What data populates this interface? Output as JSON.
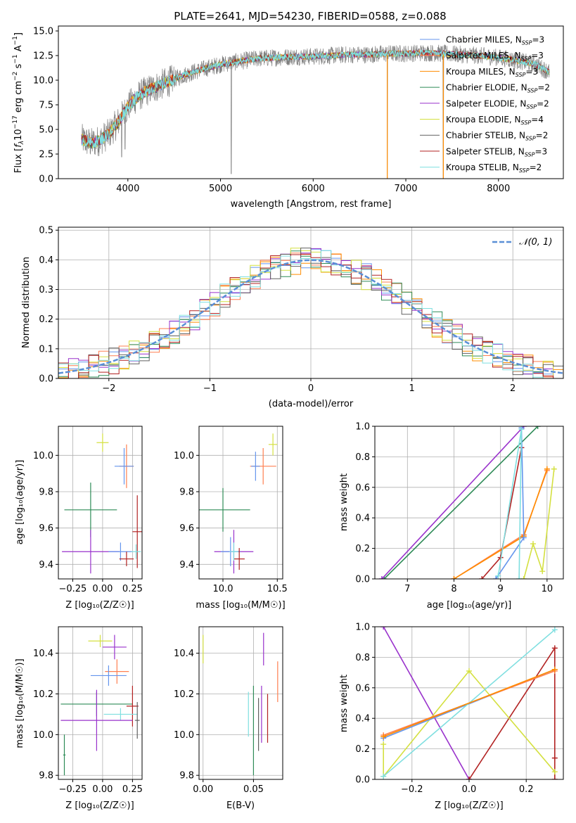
{
  "figure_title": "PLATE=2641, MJD=54230, FIBERID=0588, z=0.088",
  "colors": {
    "Chabrier MILES": "#6495ed",
    "Salpeter MILES": "#ff7f50",
    "Kroupa MILES": "#ff8c00",
    "Chabrier ELODIE": "#2e8b57",
    "Salpeter ELODIE": "#9932cc",
    "Kroupa ELODIE": "#d4e040",
    "Chabrier STELIB": "#606060",
    "Salpeter STELIB": "#b22222",
    "Kroupa STELIB": "#7fdfe0",
    "normal": "#5a8fd6",
    "data": "#808080"
  },
  "chart_data": [
    {
      "id": "spectrum",
      "type": "line",
      "title": "PLATE=2641, MJD=54230, FIBERID=0588, z=0.088",
      "xlabel": "wavelength [Angstrom, rest frame]",
      "ylabel_parts": {
        "a": "Flux [",
        "b": "f",
        "c": "λ",
        "d": "10",
        "e": "−17",
        "f": " erg cm",
        "g": "−2",
        "h": " s",
        "i": "−1",
        "j": " A",
        "k": "−1",
        "l": "]"
      },
      "xlim": [
        3250,
        8700
      ],
      "ylim": [
        0,
        15.5
      ],
      "xticks": [
        4000,
        5000,
        6000,
        7000,
        8000
      ],
      "yticks": [
        0.0,
        2.5,
        5.0,
        7.5,
        10.0,
        12.5,
        15.0
      ],
      "ytick_labels": [
        "0.0",
        "2.5",
        "5.0",
        "7.5",
        "10.0",
        "12.5",
        "15.0"
      ],
      "legend_location": "right",
      "legend": [
        {
          "name": "Chabrier MILES",
          "n": "3"
        },
        {
          "name": "Salpeter MILES",
          "n": "3"
        },
        {
          "name": "Kroupa MILES",
          "n": "3"
        },
        {
          "name": "Chabrier ELODIE",
          "n": "2"
        },
        {
          "name": "Salpeter ELODIE",
          "n": "2"
        },
        {
          "name": "Kroupa ELODIE",
          "n": "4"
        },
        {
          "name": "Chabrier STELIB",
          "n": "2"
        },
        {
          "name": "Salpeter STELIB",
          "n": "3"
        },
        {
          "name": "Kroupa STELIB",
          "n": "2"
        }
      ],
      "legend_n_label": "N",
      "legend_n_sub": "SSP",
      "continuum": {
        "x": [
          3500,
          3600,
          3700,
          3800,
          3900,
          4000,
          4100,
          4200,
          4400,
          4600,
          4800,
          5000,
          5200,
          5400,
          5600,
          5800,
          6000,
          6200,
          6400,
          6600,
          6800,
          7000,
          7200,
          7400,
          7600,
          7800,
          8000,
          8200,
          8400,
          8550
        ],
        "y": [
          4.0,
          3.6,
          3.9,
          4.6,
          5.8,
          7.3,
          8.3,
          8.9,
          9.7,
          10.5,
          11.1,
          11.6,
          11.9,
          12.2,
          12.3,
          12.4,
          12.4,
          12.5,
          12.6,
          12.6,
          12.7,
          12.7,
          12.8,
          12.7,
          12.6,
          12.5,
          12.3,
          12.0,
          11.6,
          10.8
        ]
      },
      "dips": [
        {
          "x": 3934,
          "y": 2.2
        },
        {
          "x": 3969,
          "y": 3.0
        },
        {
          "x": 5115,
          "y": 0.5
        },
        {
          "x": 6800,
          "y": 0.0
        },
        {
          "x": 7405,
          "y": 0.0
        }
      ]
    },
    {
      "id": "residuals",
      "type": "histogram",
      "xlabel": "(data-model)/error",
      "ylabel": "Normed distribution",
      "xlim": [
        -2.5,
        2.5
      ],
      "ylim": [
        0,
        0.51
      ],
      "xticks": [
        -2,
        -1,
        0,
        1,
        2
      ],
      "xtick_labels": [
        "−2",
        "−1",
        "0",
        "1",
        "2"
      ],
      "yticks": [
        0.0,
        0.1,
        0.2,
        0.3,
        0.4,
        0.5
      ],
      "ytick_labels": [
        "0.0",
        "0.1",
        "0.2",
        "0.3",
        "0.4",
        "0.5"
      ],
      "legend_label": "𝒩(0, 1)",
      "bin_width": 0.1
    },
    {
      "id": "age_vs_Z",
      "type": "errorbar",
      "xlabel": "Z [log₁₀(Z/Z☉)]",
      "ylabel": "age  [log₁₀(age/yr)]",
      "xlim": [
        -0.37,
        0.33
      ],
      "ylim": [
        9.32,
        10.16
      ],
      "xticks": [
        -0.25,
        0.0,
        0.25
      ],
      "xtick_labels": [
        "−0.25",
        "0.00",
        "0.25"
      ],
      "yticks": [
        9.4,
        9.6,
        9.8,
        10.0
      ],
      "ytick_labels": [
        "9.4",
        "9.6",
        "9.8",
        "10.0"
      ],
      "points": [
        {
          "model": "Kroupa ELODIE",
          "x": 0.0,
          "xerr": 0.05,
          "y": 10.07,
          "yerr": 0.05
        },
        {
          "model": "Salpeter MILES",
          "x": 0.2,
          "xerr": 0.06,
          "y": 9.94,
          "yerr": 0.12
        },
        {
          "model": "Chabrier MILES",
          "x": 0.18,
          "xerr": 0.08,
          "y": 9.94,
          "yerr": 0.1
        },
        {
          "model": "Chabrier ELODIE",
          "x": -0.1,
          "xerr": 0.22,
          "y": 9.7,
          "yerr": 0.15
        },
        {
          "model": "Salpeter ELODIE",
          "x": -0.1,
          "xerr": 0.24,
          "y": 9.47,
          "yerr": 0.12
        },
        {
          "model": "Chabrier MILES",
          "x": 0.15,
          "xerr": 0.1,
          "y": 9.47,
          "yerr": 0.05
        },
        {
          "model": "Salpeter STELIB",
          "x": 0.29,
          "xerr": 0.04,
          "y": 9.58,
          "yerr": 0.2
        },
        {
          "model": "Salpeter STELIB",
          "x": 0.2,
          "xerr": 0.06,
          "y": 9.43,
          "yerr": 0.04
        },
        {
          "model": "Kroupa STELIB",
          "x": 0.28,
          "xerr": 0.04,
          "y": 9.47,
          "yerr": 0.04
        }
      ]
    },
    {
      "id": "age_vs_mass",
      "type": "errorbar",
      "xlabel": "mass [log₁₀(M/M☉)]",
      "ylabel": "",
      "xlim": [
        9.78,
        10.55
      ],
      "ylim": [
        9.32,
        10.16
      ],
      "xticks": [
        10.0,
        10.5
      ],
      "xtick_labels": [
        "10.0",
        "10.5"
      ],
      "yticks": [
        9.4,
        9.6,
        9.8,
        10.0
      ],
      "ytick_labels": [
        "9.4",
        "9.6",
        "9.8",
        "10.0"
      ],
      "points": [
        {
          "model": "Kroupa ELODIE",
          "x": 10.46,
          "xerr": 0.04,
          "y": 10.06,
          "yerr": 0.06
        },
        {
          "model": "Salpeter MILES",
          "x": 10.37,
          "xerr": 0.12,
          "y": 9.94,
          "yerr": 0.1
        },
        {
          "model": "Chabrier MILES",
          "x": 10.3,
          "xerr": 0.04,
          "y": 9.94,
          "yerr": 0.08
        },
        {
          "model": "Chabrier ELODIE",
          "x": 10.0,
          "xerr": 0.25,
          "y": 9.7,
          "yerr": 0.12
        },
        {
          "model": "Salpeter ELODIE",
          "x": 10.1,
          "xerr": 0.18,
          "y": 9.47,
          "yerr": 0.12
        },
        {
          "model": "Chabrier MILES",
          "x": 10.07,
          "xerr": 0.09,
          "y": 9.47,
          "yerr": 0.08
        },
        {
          "model": "Salpeter STELIB",
          "x": 10.15,
          "xerr": 0.05,
          "y": 9.43,
          "yerr": 0.06
        },
        {
          "model": "Kroupa STELIB",
          "x": 10.1,
          "xerr": 0.04,
          "y": 9.47,
          "yerr": 0.05
        }
      ]
    },
    {
      "id": "weight_vs_age",
      "type": "line",
      "xlabel": "age  [log₁₀(age/yr)]",
      "ylabel": "mass weight",
      "xlim": [
        6.3,
        10.35
      ],
      "ylim": [
        0,
        1
      ],
      "xticks": [
        7,
        8,
        9,
        10
      ],
      "xtick_labels": [
        "7",
        "8",
        "9",
        "10"
      ],
      "yticks": [
        0.0,
        0.2,
        0.4,
        0.6,
        0.8,
        1.0
      ],
      "ytick_labels": [
        "0.0",
        "0.2",
        "0.4",
        "0.6",
        "0.8",
        "1.0"
      ],
      "series": [
        {
          "model": "Chabrier ELODIE",
          "x": [
            6.5,
            9.8
          ],
          "y": [
            0.0,
            1.0
          ]
        },
        {
          "model": "Salpeter ELODIE",
          "x": [
            6.45,
            9.5
          ],
          "y": [
            0.0,
            1.0
          ]
        },
        {
          "model": "Salpeter MILES",
          "x": [
            8.0,
            9.5,
            10.0
          ],
          "y": [
            0.0,
            0.29,
            0.71
          ]
        },
        {
          "model": "Kroupa MILES",
          "x": [
            8.0,
            9.5,
            10.0
          ],
          "y": [
            0.0,
            0.28,
            0.72
          ]
        },
        {
          "model": "Salpeter STELIB",
          "x": [
            8.6,
            9.0,
            9.45
          ],
          "y": [
            0.0,
            0.14,
            0.86
          ]
        },
        {
          "model": "Chabrier MILES",
          "x": [
            8.9,
            9.5,
            9.45
          ],
          "y": [
            0.0,
            0.27,
            0.99
          ]
        },
        {
          "model": "Kroupa STELIB",
          "x": [
            8.95,
            9.45,
            9.4
          ],
          "y": [
            0.02,
            0.98,
            0.0
          ]
        },
        {
          "model": "Kroupa ELODIE",
          "x": [
            9.5,
            9.7,
            9.9,
            10.15
          ],
          "y": [
            0.0,
            0.23,
            0.05,
            0.72
          ]
        }
      ]
    },
    {
      "id": "mass_vs_Z",
      "type": "errorbar",
      "xlabel": "Z [log₁₀(Z/Z☉)]",
      "ylabel": "mass [log₁₀(M/M☉)]",
      "xlim": [
        -0.37,
        0.33
      ],
      "ylim": [
        9.78,
        10.53
      ],
      "xticks": [
        -0.25,
        0.0,
        0.25
      ],
      "xtick_labels": [
        "−0.25",
        "0.00",
        "0.25"
      ],
      "yticks": [
        9.8,
        10.0,
        10.2,
        10.4
      ],
      "ytick_labels": [
        "9.8",
        "10.0",
        "10.2",
        "10.4"
      ],
      "points": [
        {
          "model": "Kroupa ELODIE",
          "x": -0.02,
          "xerr": 0.1,
          "y": 10.46,
          "yerr": 0.03
        },
        {
          "model": "Salpeter ELODIE",
          "x": 0.1,
          "xerr": 0.1,
          "y": 10.43,
          "yerr": 0.06
        },
        {
          "model": "Salpeter MILES",
          "x": 0.12,
          "xerr": 0.1,
          "y": 10.31,
          "yerr": 0.06
        },
        {
          "model": "Chabrier MILES",
          "x": 0.05,
          "xerr": 0.15,
          "y": 10.29,
          "yerr": 0.05
        },
        {
          "model": "Chabrier ELODIE",
          "x": -0.05,
          "xerr": 0.3,
          "y": 10.15,
          "yerr": 0.06
        },
        {
          "model": "Salpeter STELIB",
          "x": 0.25,
          "xerr": 0.05,
          "y": 10.14,
          "yerr": 0.1
        },
        {
          "model": "Kroupa STELIB",
          "x": 0.15,
          "xerr": 0.14,
          "y": 10.1,
          "yerr": 0.03
        },
        {
          "model": "Salpeter ELODIE",
          "x": -0.05,
          "xerr": 0.3,
          "y": 10.07,
          "yerr": 0.15
        },
        {
          "model": "Chabrier STELIB",
          "x": 0.29,
          "xerr": 0.02,
          "y": 10.07,
          "yerr": 0.09
        },
        {
          "model": "Chabrier ELODIE",
          "x": -0.32,
          "xerr": 0.01,
          "y": 9.9,
          "yerr": 0.1
        }
      ]
    },
    {
      "id": "mass_vs_ebv",
      "type": "errorbar",
      "xlabel": "E(B-V)",
      "ylabel": "",
      "xlim": [
        -0.004,
        0.079
      ],
      "ylim": [
        9.78,
        10.53
      ],
      "xticks": [
        0.0,
        0.05
      ],
      "xtick_labels": [
        "0.00",
        "0.05"
      ],
      "yticks": [
        9.8,
        10.0,
        10.2,
        10.4
      ],
      "ytick_labels": [
        "9.8",
        "10.0",
        "10.2",
        "10.4"
      ],
      "points": [
        {
          "model": "Kroupa ELODIE",
          "x": 0.0,
          "y": 10.42,
          "yerr": 0.07
        },
        {
          "model": "Salpeter ELODIE",
          "x": 0.06,
          "y": 10.42,
          "yerr": 0.08
        },
        {
          "model": "Salpeter MILES",
          "x": 0.074,
          "y": 10.26,
          "yerr": 0.1
        },
        {
          "model": "Kroupa STELIB",
          "x": 0.045,
          "y": 10.1,
          "yerr": 0.11
        },
        {
          "model": "Chabrier ELODIE",
          "x": 0.05,
          "y": 10.02,
          "yerr": 0.22
        },
        {
          "model": "Salpeter STELIB",
          "x": 0.064,
          "y": 10.08,
          "yerr": 0.12
        },
        {
          "model": "Salpeter ELODIE",
          "x": 0.058,
          "y": 10.1,
          "yerr": 0.14
        },
        {
          "model": "Chabrier STELIB",
          "x": 0.055,
          "y": 10.05,
          "yerr": 0.13
        }
      ]
    },
    {
      "id": "weight_vs_Z",
      "type": "line",
      "xlabel": "Z [log₁₀(Z/Z☉)]",
      "ylabel": "mass weight",
      "xlim": [
        -0.33,
        0.33
      ],
      "ylim": [
        0,
        1
      ],
      "xticks": [
        -0.2,
        0.0,
        0.2
      ],
      "xtick_labels": [
        "−0.2",
        "0.0",
        "0.2"
      ],
      "yticks": [
        0.0,
        0.2,
        0.4,
        0.6,
        0.8,
        1.0
      ],
      "ytick_labels": [
        "0.0",
        "0.2",
        "0.4",
        "0.6",
        "0.8",
        "1.0"
      ],
      "series": [
        {
          "model": "Salpeter ELODIE",
          "x": [
            -0.3,
            0.0
          ],
          "y": [
            1.0,
            0.0
          ]
        },
        {
          "model": "Salpeter STELIB",
          "x": [
            0.0,
            0.3,
            0.3,
            0.3
          ],
          "y": [
            0.0,
            0.86,
            0.14,
            0.0
          ]
        },
        {
          "model": "Kroupa ELODIE",
          "x": [
            -0.3,
            -0.3,
            0.0,
            0.3
          ],
          "y": [
            0.23,
            0.02,
            0.71,
            0.05
          ]
        },
        {
          "model": "Chabrier MILES",
          "x": [
            -0.3,
            0.3
          ],
          "y": [
            0.27,
            0.72
          ]
        },
        {
          "model": "Salpeter MILES",
          "x": [
            -0.3,
            0.3
          ],
          "y": [
            0.29,
            0.71
          ]
        },
        {
          "model": "Kroupa STELIB",
          "x": [
            -0.3,
            0.3
          ],
          "y": [
            0.02,
            0.98
          ]
        },
        {
          "model": "Kroupa MILES",
          "x": [
            -0.3,
            0.3
          ],
          "y": [
            0.28,
            0.72
          ]
        }
      ]
    }
  ]
}
